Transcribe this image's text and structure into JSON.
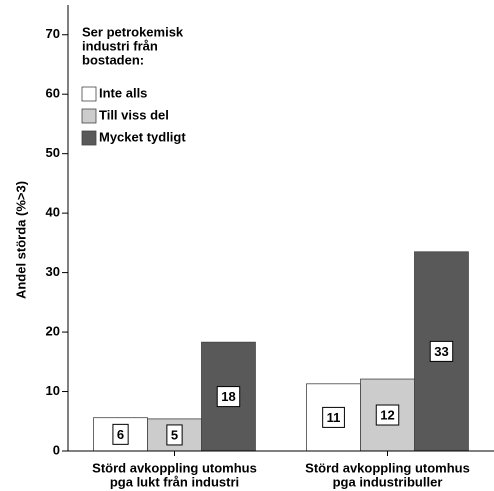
{
  "chart_data": {
    "type": "bar",
    "y_label": "Andel störda (%>3)",
    "legend_title": [
      "Ser petrokemisk",
      "industri från",
      "bostaden:"
    ],
    "legend_position": "upper left",
    "categories": [
      [
        "Störd avkoppling utomhus",
        "pga lukt från industri"
      ],
      [
        "Störd avkoppling utomhus",
        "pga industribuller"
      ]
    ],
    "series": [
      {
        "name": "Inte alls",
        "color": "#ffffff",
        "values": [
          5.6,
          11.3
        ],
        "value_labels": [
          "6",
          "11"
        ]
      },
      {
        "name": "Till viss del",
        "color": "#cccccc",
        "values": [
          5.4,
          12.1
        ],
        "value_labels": [
          "5",
          "12"
        ]
      },
      {
        "name": "Mycket tydligt",
        "color": "#595959",
        "values": [
          18.3,
          33.5
        ],
        "value_labels": [
          "18",
          "33"
        ]
      }
    ],
    "ylim": [
      0,
      75
    ],
    "yticks": [
      0,
      10,
      20,
      30,
      40,
      50,
      60,
      70
    ]
  }
}
